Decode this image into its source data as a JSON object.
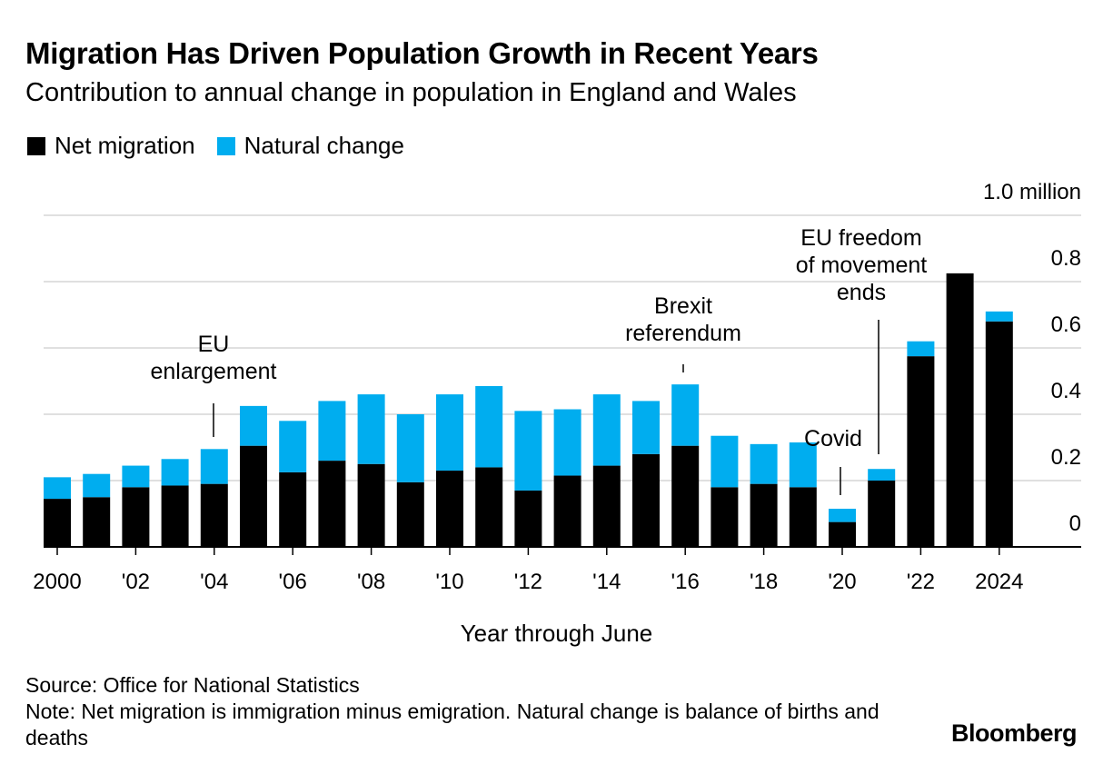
{
  "title": "Migration Has Driven Population Growth in Recent Years",
  "subtitle": "Contribution to annual change in population in England and Wales",
  "legend": [
    {
      "label": "Net migration",
      "color": "#000000"
    },
    {
      "label": "Natural change",
      "color": "#00adef"
    }
  ],
  "chart_data": {
    "type": "bar",
    "stacked": true,
    "x": [
      2000,
      2001,
      2002,
      2003,
      2004,
      2005,
      2006,
      2007,
      2008,
      2009,
      2010,
      2011,
      2012,
      2013,
      2014,
      2015,
      2016,
      2017,
      2018,
      2019,
      2020,
      2021,
      2022,
      2023,
      2024
    ],
    "x_tick_labels": [
      "2000",
      "'02",
      "'04",
      "'06",
      "'08",
      "'10",
      "'12",
      "'14",
      "'16",
      "'18",
      "'20",
      "'22",
      "2024"
    ],
    "x_tick_values": [
      2000,
      2002,
      2004,
      2006,
      2008,
      2010,
      2012,
      2014,
      2016,
      2018,
      2020,
      2022,
      2024
    ],
    "series": [
      {
        "name": "Net migration",
        "color": "#000000",
        "values": [
          0.145,
          0.15,
          0.18,
          0.185,
          0.19,
          0.305,
          0.225,
          0.26,
          0.25,
          0.195,
          0.23,
          0.24,
          0.17,
          0.215,
          0.245,
          0.28,
          0.305,
          0.18,
          0.19,
          0.18,
          0.075,
          0.2,
          0.575,
          0.825,
          0.68
        ]
      },
      {
        "name": "Natural change",
        "color": "#00adef",
        "values": [
          0.065,
          0.07,
          0.065,
          0.08,
          0.105,
          0.12,
          0.155,
          0.18,
          0.21,
          0.205,
          0.23,
          0.245,
          0.24,
          0.2,
          0.215,
          0.16,
          0.185,
          0.155,
          0.12,
          0.135,
          0.04,
          0.035,
          0.045,
          0.0,
          0.03
        ]
      }
    ],
    "ylim": [
      0,
      1.0
    ],
    "y_ticks": [
      {
        "value": 0,
        "label": "0"
      },
      {
        "value": 0.2,
        "label": "0.2"
      },
      {
        "value": 0.4,
        "label": "0.4"
      },
      {
        "value": 0.6,
        "label": "0.6"
      },
      {
        "value": 0.8,
        "label": "0.8"
      },
      {
        "value": 1.0,
        "label": "1.0 million"
      }
    ],
    "grid": true,
    "xlabel": "Year through June",
    "annotations": [
      {
        "lines": [
          "EU",
          "enlargement"
        ],
        "x": 2004
      },
      {
        "lines": [
          "Brexit",
          "referendum"
        ],
        "x": 2016
      },
      {
        "lines": [
          "Covid"
        ],
        "x": 2020
      },
      {
        "lines": [
          "EU freedom",
          "of movement",
          "ends"
        ],
        "x": 2021
      }
    ]
  },
  "source": "Source: Office for National Statistics",
  "note": "Note: Net migration is immigration minus emigration. Natural change is balance of births and deaths",
  "brand": "Bloomberg"
}
